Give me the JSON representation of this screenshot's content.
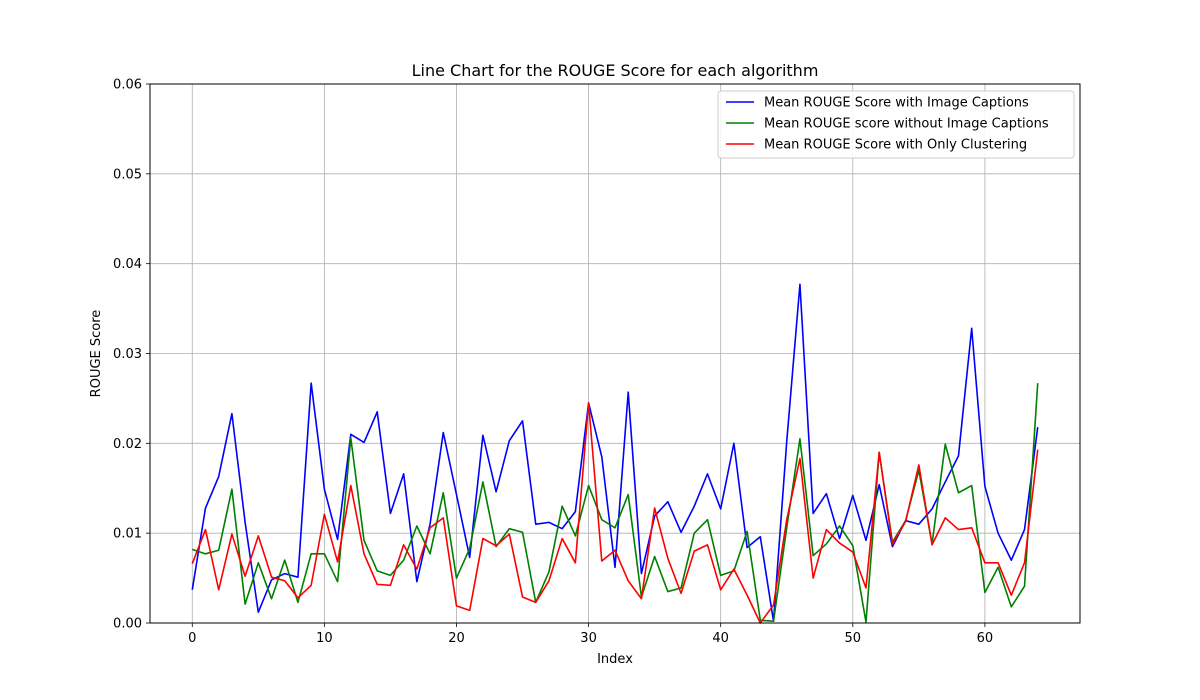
{
  "chart_data": {
    "type": "line",
    "title": "Line Chart for the ROUGE Score for each algorithm",
    "xlabel": "Index",
    "ylabel": "ROUGE Score",
    "xlim": [
      -3.2,
      67.2
    ],
    "ylim": [
      0,
      0.06
    ],
    "xticks": [
      0,
      10,
      20,
      30,
      40,
      50,
      60
    ],
    "xtick_labels": [
      "0",
      "10",
      "20",
      "30",
      "40",
      "50",
      "60"
    ],
    "yticks": [
      0,
      0.01,
      0.02,
      0.03,
      0.04,
      0.05,
      0.06
    ],
    "ytick_labels": [
      "0.00",
      "0.01",
      "0.02",
      "0.03",
      "0.04",
      "0.05",
      "0.06"
    ],
    "grid": true,
    "legend_position": "top-right",
    "series": [
      {
        "name": "Mean ROUGE Score with Image Captions",
        "color": "#0000ff",
        "values": [
          0.0037,
          0.0128,
          0.0163,
          0.0233,
          0.0112,
          0.0012,
          0.0048,
          0.0055,
          0.0051,
          0.0267,
          0.0149,
          0.0093,
          0.021,
          0.0201,
          0.0235,
          0.0122,
          0.0166,
          0.0046,
          0.011,
          0.0212,
          0.0143,
          0.0073,
          0.0209,
          0.0146,
          0.0203,
          0.0225,
          0.011,
          0.0112,
          0.0105,
          0.0124,
          0.0245,
          0.0185,
          0.0062,
          0.0257,
          0.0055,
          0.0119,
          0.0135,
          0.0101,
          0.013,
          0.0166,
          0.0127,
          0.02,
          0.0084,
          0.0096,
          0.0002,
          0.0202,
          0.0377,
          0.0122,
          0.0144,
          0.0094,
          0.0142,
          0.0092,
          0.0154,
          0.0085,
          0.0114,
          0.011,
          0.0127,
          0.0157,
          0.0186,
          0.0328,
          0.0152,
          0.01,
          0.007,
          0.0104,
          0.0218
        ]
      },
      {
        "name": "Mean ROUGE score without Image Captions",
        "color": "#008000",
        "values": [
          0.0082,
          0.0077,
          0.0081,
          0.0149,
          0.0021,
          0.0067,
          0.0027,
          0.007,
          0.0023,
          0.0077,
          0.0077,
          0.0046,
          0.0206,
          0.0092,
          0.0058,
          0.0053,
          0.007,
          0.0108,
          0.0077,
          0.0145,
          0.005,
          0.0083,
          0.0157,
          0.0085,
          0.0105,
          0.0101,
          0.0023,
          0.0057,
          0.013,
          0.0097,
          0.0153,
          0.0115,
          0.0106,
          0.0143,
          0.0029,
          0.0074,
          0.0035,
          0.0039,
          0.01,
          0.0115,
          0.0053,
          0.0058,
          0.0102,
          0.0003,
          0.0002,
          0.0106,
          0.0205,
          0.0075,
          0.0088,
          0.0108,
          0.0086,
          0.0001,
          0.019,
          0.009,
          0.0114,
          0.017,
          0.0088,
          0.0199,
          0.0145,
          0.0153,
          0.0034,
          0.0062,
          0.0018,
          0.0041,
          0.0267
        ]
      },
      {
        "name": "Mean ROUGE Score with Only Clustering",
        "color": "#ff0000",
        "values": [
          0.0066,
          0.0104,
          0.0037,
          0.0099,
          0.0052,
          0.0097,
          0.0051,
          0.0047,
          0.0028,
          0.0042,
          0.0121,
          0.0068,
          0.0153,
          0.0077,
          0.0043,
          0.0042,
          0.0087,
          0.006,
          0.0106,
          0.0117,
          0.0019,
          0.0014,
          0.0094,
          0.0086,
          0.0099,
          0.0029,
          0.0023,
          0.0047,
          0.0094,
          0.0067,
          0.0245,
          0.0069,
          0.0081,
          0.0047,
          0.0027,
          0.0128,
          0.0072,
          0.0033,
          0.008,
          0.0087,
          0.0037,
          0.006,
          0.0031,
          0.0,
          0.002,
          0.0115,
          0.0183,
          0.005,
          0.0104,
          0.0089,
          0.0079,
          0.0039,
          0.019,
          0.0088,
          0.0113,
          0.0176,
          0.0087,
          0.0117,
          0.0104,
          0.0106,
          0.0067,
          0.0067,
          0.0031,
          0.0067,
          0.0193
        ]
      }
    ]
  }
}
